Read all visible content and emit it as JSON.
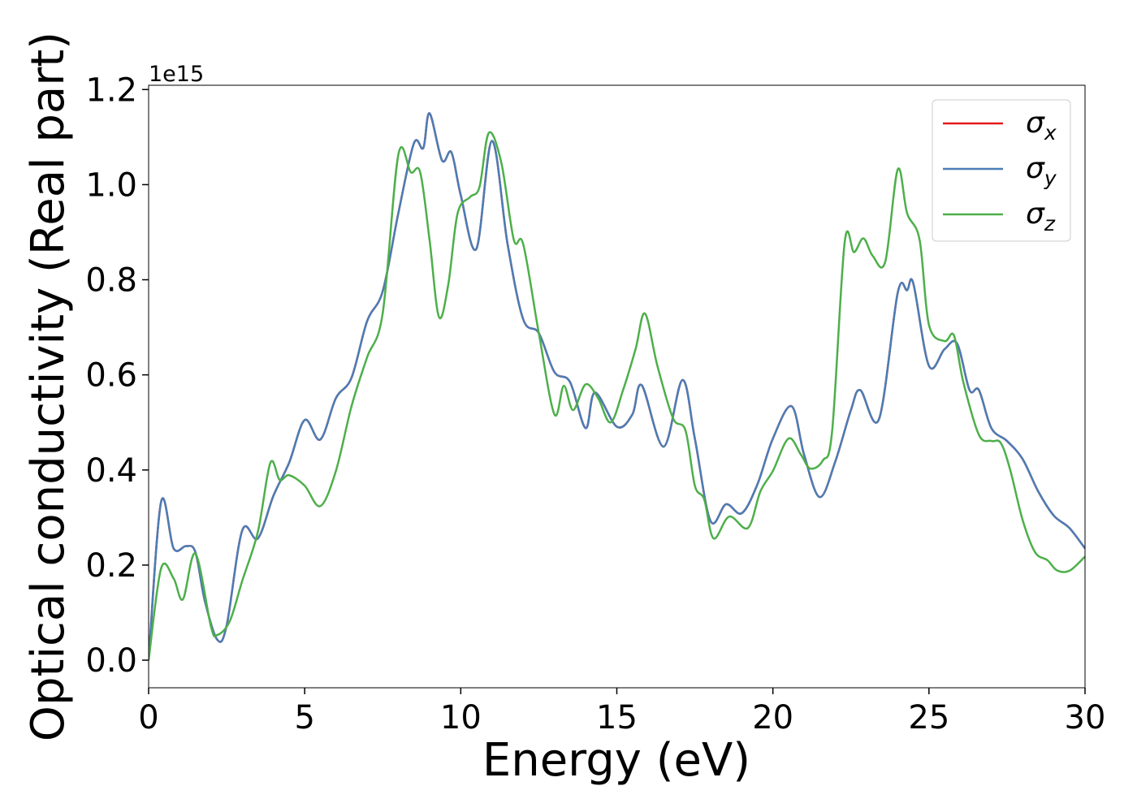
{
  "chart_data": {
    "type": "line",
    "xlabel": "Energy (eV)",
    "ylabel": "Optical conductivity (Real part)",
    "y_offset_label": "1e15",
    "xlim": [
      0,
      30
    ],
    "xticks": [
      0,
      5,
      10,
      15,
      20,
      25,
      30
    ],
    "ylim": [
      -0.058,
      1.209
    ],
    "yticks": [
      {
        "value": 0,
        "label": "0.0"
      },
      0.2,
      0.4,
      0.6,
      0.8,
      {
        "value": 1,
        "label": "1.0"
      },
      1.2
    ],
    "legend": "upper right",
    "series": [
      {
        "name": "σx",
        "color": "#e41a1c",
        "x": [
          0,
          0.4,
          0.8,
          1.2,
          1.5,
          1.8,
          2.2,
          2.5,
          3.0,
          3.5,
          4.0,
          4.5,
          5.0,
          5.5,
          6.0,
          6.5,
          7.0,
          7.5,
          8.0,
          8.5,
          8.8,
          9.0,
          9.4,
          9.7,
          10.0,
          10.5,
          11.0,
          11.5,
          12.0,
          12.5,
          13.0,
          13.5,
          14.0,
          14.3,
          15.0,
          15.5,
          15.8,
          16.5,
          17.1,
          17.5,
          18.0,
          18.5,
          19.0,
          19.5,
          20.0,
          20.6,
          21.0,
          21.5,
          22.0,
          22.5,
          22.8,
          23.4,
          24.0,
          24.3,
          24.5,
          25.0,
          25.5,
          25.9,
          26.3,
          26.6,
          27.0,
          27.5,
          28.0,
          28.5,
          29.0,
          29.5,
          30.0
        ],
        "values": [
          0,
          0.333,
          0.235,
          0.24,
          0.227,
          0.125,
          0.043,
          0.073,
          0.273,
          0.256,
          0.346,
          0.415,
          0.505,
          0.464,
          0.551,
          0.594,
          0.713,
          0.776,
          0.94,
          1.087,
          1.077,
          1.15,
          1.051,
          1.068,
          0.978,
          0.865,
          1.092,
          0.875,
          0.717,
          0.688,
          0.606,
          0.585,
          0.488,
          0.563,
          0.491,
          0.517,
          0.578,
          0.449,
          0.589,
          0.466,
          0.293,
          0.328,
          0.309,
          0.369,
          0.466,
          0.534,
          0.432,
          0.343,
          0.418,
          0.526,
          0.568,
          0.507,
          0.773,
          0.778,
          0.792,
          0.619,
          0.654,
          0.666,
          0.568,
          0.568,
          0.488,
          0.461,
          0.423,
          0.355,
          0.304,
          0.278,
          0.235
        ]
      },
      {
        "name": "σy",
        "color": "#4a7db5",
        "x": [
          0,
          0.4,
          0.8,
          1.2,
          1.5,
          1.8,
          2.2,
          2.5,
          3.0,
          3.5,
          4.0,
          4.5,
          5.0,
          5.5,
          6.0,
          6.5,
          7.0,
          7.5,
          8.0,
          8.5,
          8.8,
          9.0,
          9.4,
          9.7,
          10.0,
          10.5,
          11.0,
          11.5,
          12.0,
          12.5,
          13.0,
          13.5,
          14.0,
          14.3,
          15.0,
          15.5,
          15.8,
          16.5,
          17.1,
          17.5,
          18.0,
          18.5,
          19.0,
          19.5,
          20.0,
          20.6,
          21.0,
          21.5,
          22.0,
          22.5,
          22.8,
          23.4,
          24.0,
          24.3,
          24.5,
          25.0,
          25.5,
          25.9,
          26.3,
          26.6,
          27.0,
          27.5,
          28.0,
          28.5,
          29.0,
          29.5,
          30.0
        ],
        "values": [
          0,
          0.333,
          0.235,
          0.24,
          0.227,
          0.125,
          0.043,
          0.073,
          0.273,
          0.256,
          0.346,
          0.415,
          0.505,
          0.464,
          0.551,
          0.594,
          0.713,
          0.776,
          0.94,
          1.087,
          1.077,
          1.15,
          1.051,
          1.068,
          0.978,
          0.865,
          1.092,
          0.875,
          0.717,
          0.688,
          0.606,
          0.585,
          0.488,
          0.563,
          0.491,
          0.517,
          0.578,
          0.449,
          0.589,
          0.466,
          0.293,
          0.328,
          0.309,
          0.369,
          0.466,
          0.534,
          0.432,
          0.343,
          0.418,
          0.526,
          0.568,
          0.507,
          0.773,
          0.778,
          0.792,
          0.619,
          0.654,
          0.666,
          0.568,
          0.568,
          0.488,
          0.461,
          0.423,
          0.355,
          0.304,
          0.278,
          0.235
        ]
      },
      {
        "name": "σz",
        "color": "#4daf4a",
        "x": [
          0,
          0.4,
          0.8,
          1.1,
          1.5,
          2.0,
          2.2,
          2.6,
          3.0,
          3.5,
          3.9,
          4.2,
          4.5,
          5.0,
          5.5,
          6.0,
          6.5,
          7.0,
          7.5,
          8.0,
          8.4,
          8.7,
          9.0,
          9.3,
          9.6,
          9.9,
          10.3,
          10.6,
          10.9,
          11.3,
          11.7,
          12.0,
          12.5,
          13.0,
          13.3,
          13.6,
          14.0,
          14.4,
          14.8,
          15.2,
          15.6,
          15.9,
          16.3,
          16.8,
          17.2,
          17.5,
          17.8,
          18.1,
          18.6,
          19.2,
          19.6,
          20.0,
          20.5,
          20.9,
          21.2,
          21.6,
          21.9,
          22.3,
          22.6,
          22.9,
          23.2,
          23.6,
          24.0,
          24.3,
          24.7,
          25.0,
          25.5,
          25.8,
          26.1,
          26.6,
          27.0,
          27.3,
          27.6,
          28.0,
          28.4,
          28.8,
          29.1,
          29.5,
          30.0
        ],
        "values": [
          0,
          0.193,
          0.172,
          0.128,
          0.224,
          0.07,
          0.053,
          0.082,
          0.167,
          0.27,
          0.415,
          0.379,
          0.389,
          0.367,
          0.324,
          0.398,
          0.534,
          0.637,
          0.73,
          1.063,
          1.026,
          1.026,
          0.884,
          0.722,
          0.79,
          0.94,
          0.974,
          0.995,
          1.109,
          1.046,
          0.884,
          0.875,
          0.688,
          0.517,
          0.577,
          0.526,
          0.58,
          0.551,
          0.5,
          0.568,
          0.654,
          0.729,
          0.619,
          0.509,
          0.483,
          0.367,
          0.338,
          0.256,
          0.302,
          0.278,
          0.355,
          0.398,
          0.466,
          0.432,
          0.403,
          0.42,
          0.483,
          0.879,
          0.858,
          0.887,
          0.85,
          0.838,
          1.032,
          0.94,
          0.884,
          0.705,
          0.671,
          0.683,
          0.585,
          0.474,
          0.461,
          0.457,
          0.401,
          0.295,
          0.227,
          0.21,
          0.189,
          0.188,
          0.218
        ]
      }
    ]
  }
}
